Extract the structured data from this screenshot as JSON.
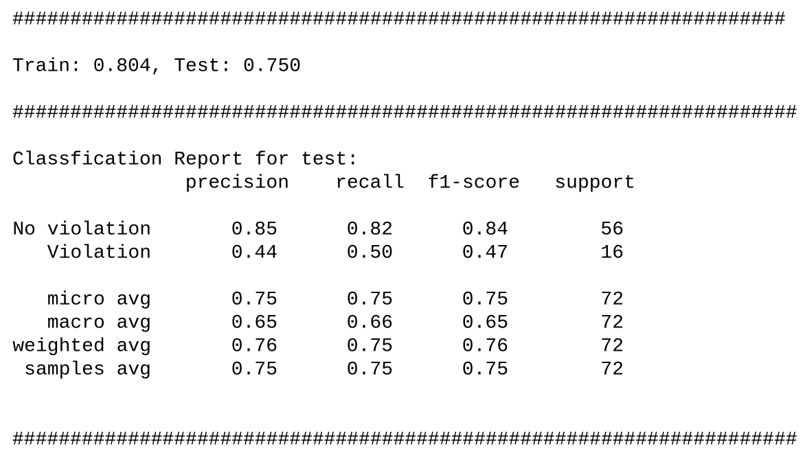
{
  "separators": [
    "###################################################################",
    "####################################################################",
    "####################################################################"
  ],
  "score_line": "Train: 0.804, Test: 0.750",
  "report": {
    "title": "Classfication Report for test:",
    "columns": [
      "precision",
      "recall",
      "f1-score",
      "support"
    ],
    "rows": [
      {
        "label": "No violation",
        "values": [
          "0.85",
          "0.82",
          "0.84",
          "56"
        ]
      },
      {
        "label": "Violation",
        "values": [
          "0.44",
          "0.50",
          "0.47",
          "16"
        ]
      },
      {
        "label": "micro avg",
        "values": [
          "0.75",
          "0.75",
          "0.75",
          "72"
        ]
      },
      {
        "label": "macro avg",
        "values": [
          "0.65",
          "0.66",
          "0.65",
          "72"
        ]
      },
      {
        "label": "weighted avg",
        "values": [
          "0.76",
          "0.75",
          "0.76",
          "72"
        ]
      },
      {
        "label": "samples avg",
        "values": [
          "0.75",
          "0.75",
          "0.75",
          "72"
        ]
      }
    ]
  }
}
